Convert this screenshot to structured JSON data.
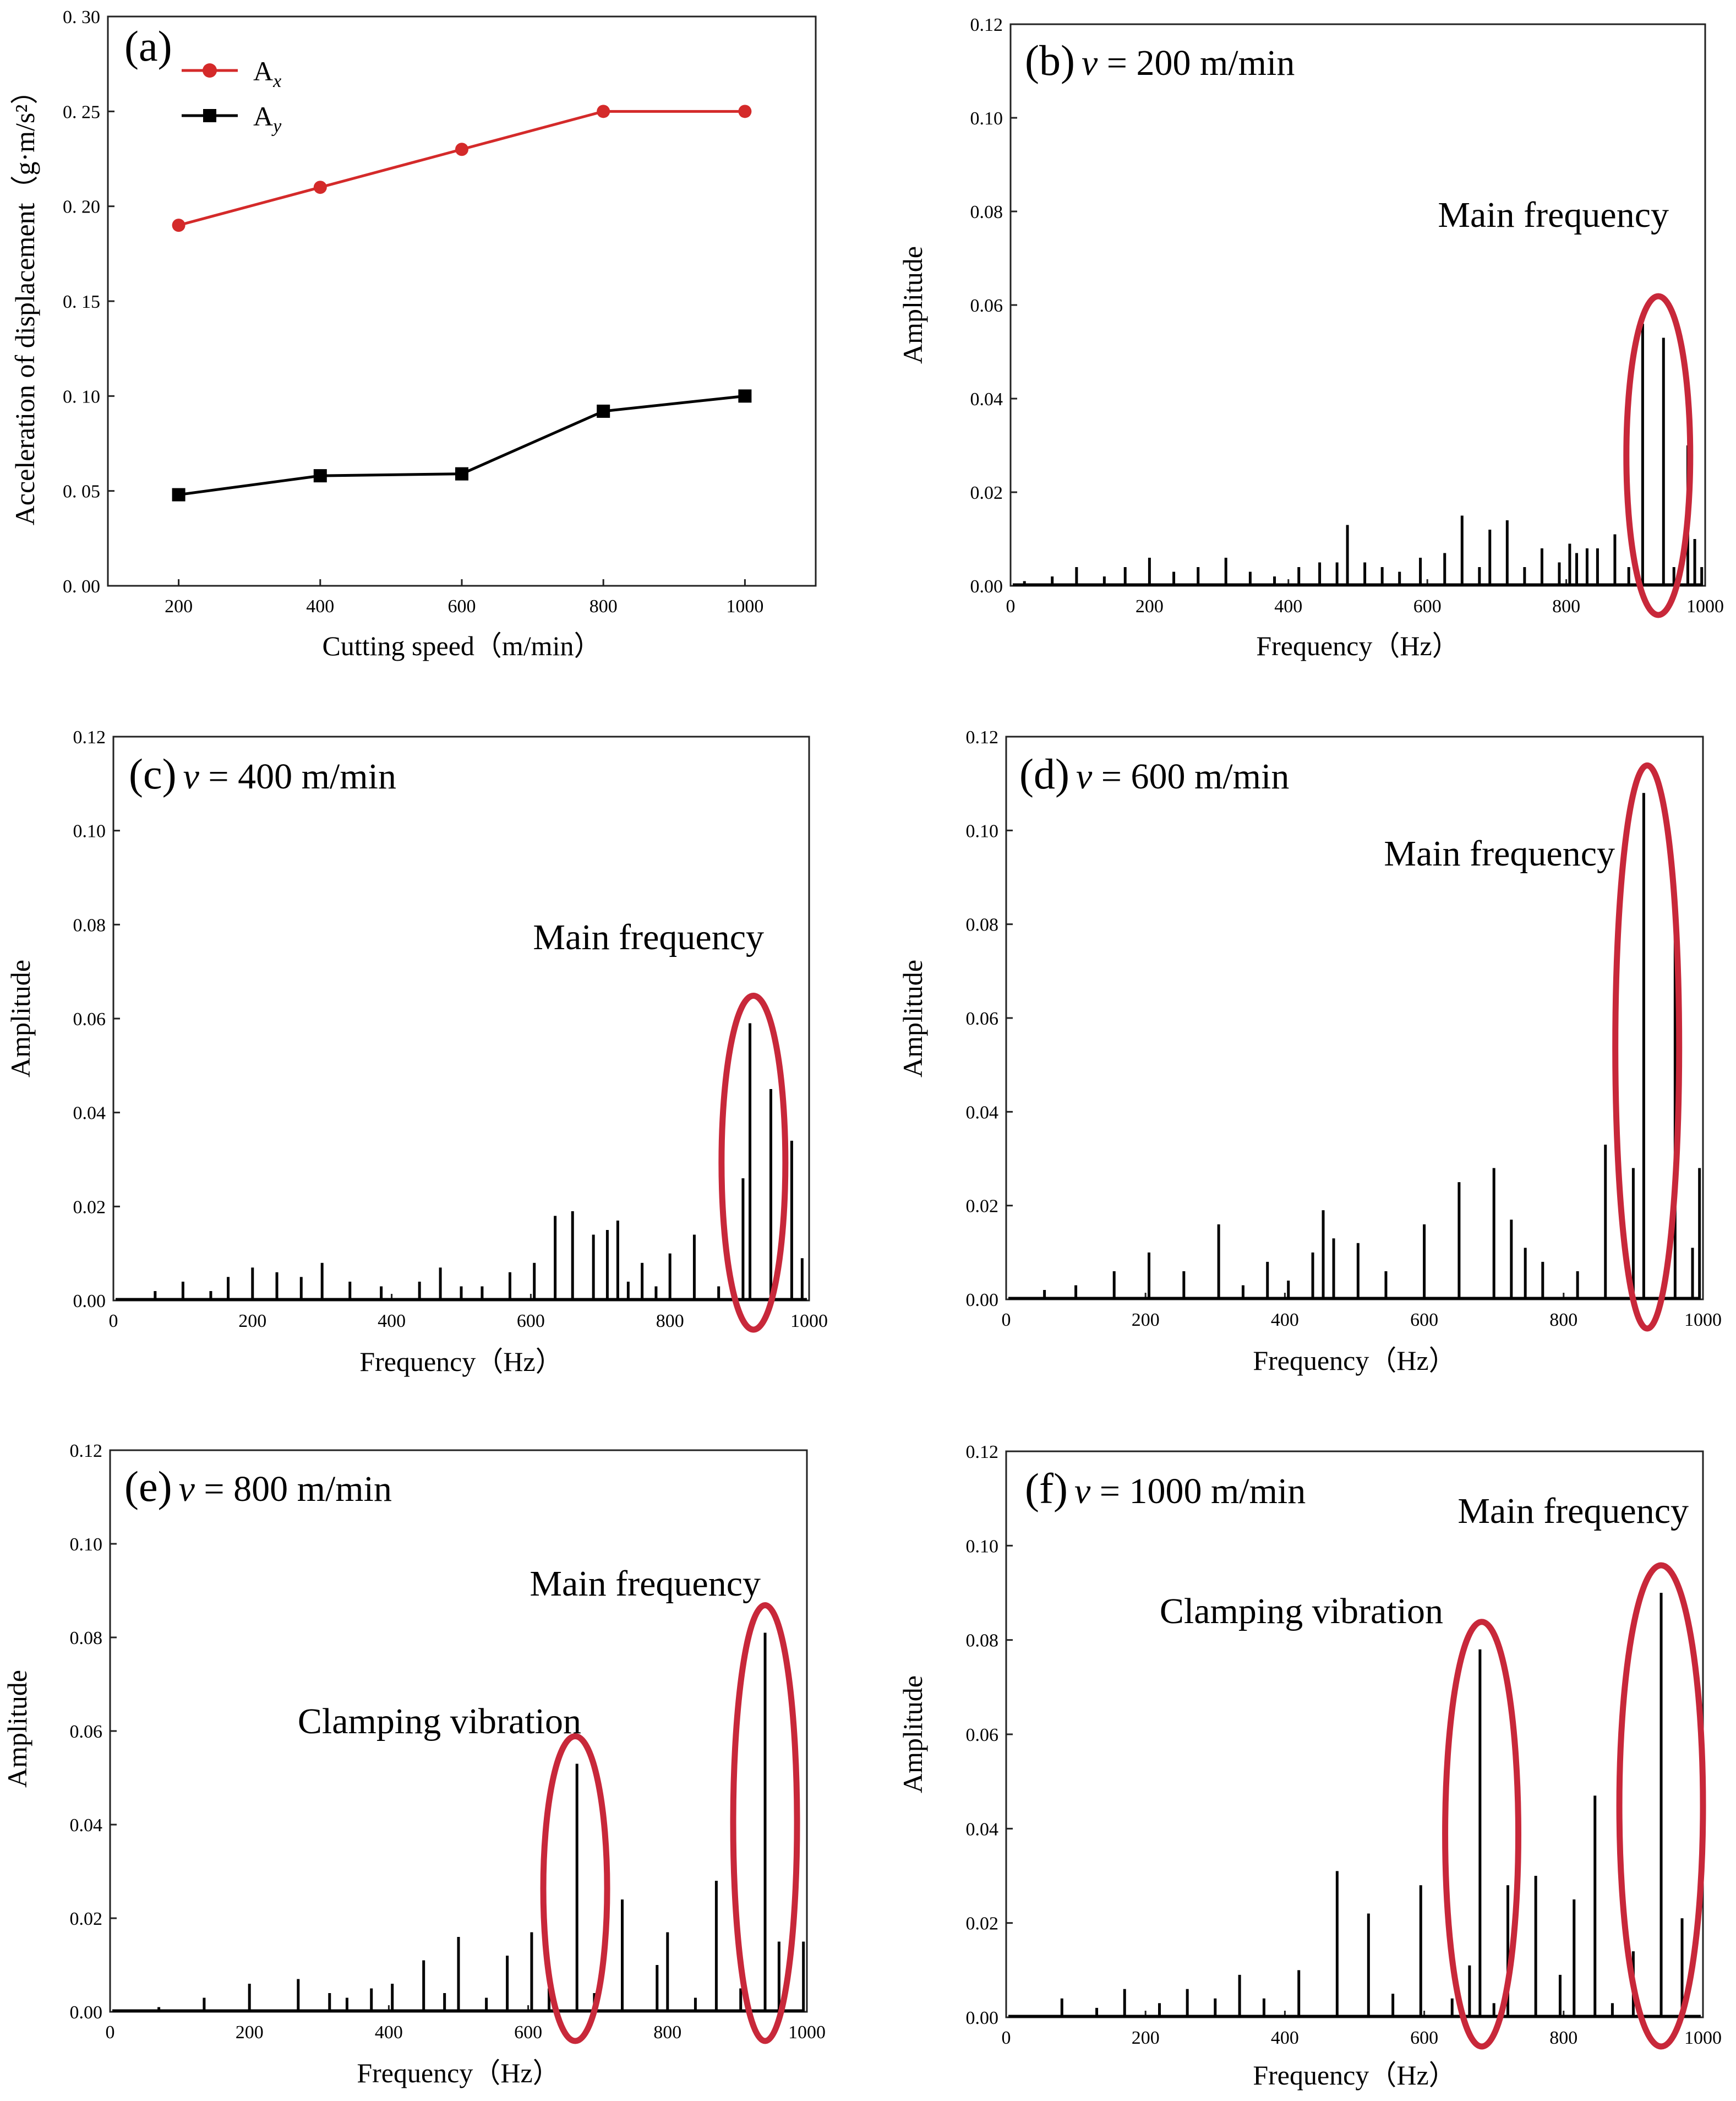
{
  "colors": {
    "series_x": "#d42a2a",
    "series_y": "#000000",
    "highlight": "#c8283a",
    "spike": "#000000"
  },
  "chart_data": [
    {
      "id": "a",
      "type": "line",
      "panel_label": "(a)",
      "xlabel": "Cutting speed（m/min）",
      "ylabel": "Acceleration of displacement（g·m/s²）",
      "x": [
        200,
        400,
        600,
        800,
        1000
      ],
      "xlim": [
        100,
        1100
      ],
      "ylim": [
        0,
        0.3
      ],
      "xticks": [
        "200",
        "400",
        "600",
        "800",
        "1000"
      ],
      "yticks": [
        "0. 00",
        "0. 05",
        "0. 10",
        "0. 15",
        "0. 20",
        "0. 25",
        "0. 30"
      ],
      "legend_position": "top-left",
      "series": [
        {
          "name": "A",
          "name_sub": "x",
          "color": "#d42a2a",
          "marker": "circle",
          "values": [
            0.19,
            0.21,
            0.23,
            0.25,
            0.25
          ]
        },
        {
          "name": "A",
          "name_sub": "y",
          "color": "#000000",
          "marker": "square",
          "values": [
            0.048,
            0.058,
            0.059,
            0.092,
            0.1
          ]
        }
      ]
    },
    {
      "id": "b",
      "type": "bar",
      "panel_label": "(b)",
      "speed_symbol": "v",
      "speed_text": " = 200 m/min",
      "xlabel": "Frequency（Hz）",
      "ylabel": "Amplitude",
      "xlim": [
        0,
        1000
      ],
      "ylim": [
        0,
        0.12
      ],
      "xticks": [
        "0",
        "200",
        "400",
        "600",
        "800",
        "1000"
      ],
      "yticks": [
        "0.00",
        "0.02",
        "0.04",
        "0.06",
        "0.08",
        "0.10",
        "0.12"
      ],
      "annotations": [
        {
          "text": "Main frequency",
          "freq_range": [
            905,
            960
          ]
        }
      ],
      "x": [
        20,
        60,
        95,
        135,
        165,
        200,
        235,
        270,
        310,
        345,
        380,
        415,
        445,
        470,
        485,
        510,
        535,
        560,
        590,
        625,
        650,
        675,
        690,
        715,
        740,
        765,
        790,
        805,
        815,
        830,
        845,
        870,
        890,
        910,
        940,
        955,
        975,
        985,
        995
      ],
      "values": [
        0.001,
        0.002,
        0.004,
        0.002,
        0.004,
        0.006,
        0.003,
        0.004,
        0.006,
        0.003,
        0.002,
        0.004,
        0.005,
        0.005,
        0.013,
        0.005,
        0.004,
        0.003,
        0.006,
        0.007,
        0.015,
        0.004,
        0.012,
        0.014,
        0.004,
        0.008,
        0.005,
        0.009,
        0.007,
        0.008,
        0.008,
        0.011,
        0.004,
        0.056,
        0.053,
        0.004,
        0.03,
        0.01,
        0.004
      ]
    },
    {
      "id": "c",
      "type": "bar",
      "panel_label": "(c)",
      "speed_symbol": "v",
      "speed_text": " = 400 m/min",
      "xlabel": "Frequency（Hz）",
      "ylabel": "Amplitude",
      "xlim": [
        0,
        1000
      ],
      "ylim": [
        0,
        0.12
      ],
      "xticks": [
        "0",
        "200",
        "400",
        "600",
        "800",
        "1000"
      ],
      "yticks": [
        "0.00",
        "0.02",
        "0.04",
        "0.06",
        "0.08",
        "0.10",
        "0.12"
      ],
      "annotations": [
        {
          "text": "Main frequency",
          "freq_range": [
            880,
            960
          ]
        }
      ],
      "x": [
        60,
        100,
        140,
        165,
        200,
        235,
        270,
        300,
        340,
        385,
        440,
        470,
        500,
        530,
        570,
        605,
        635,
        660,
        690,
        710,
        725,
        740,
        760,
        780,
        800,
        835,
        870,
        905,
        915,
        945,
        975,
        990
      ],
      "values": [
        0.002,
        0.004,
        0.002,
        0.005,
        0.007,
        0.006,
        0.005,
        0.008,
        0.004,
        0.003,
        0.004,
        0.007,
        0.003,
        0.003,
        0.006,
        0.008,
        0.018,
        0.019,
        0.014,
        0.015,
        0.017,
        0.004,
        0.008,
        0.003,
        0.01,
        0.014,
        0.003,
        0.026,
        0.059,
        0.045,
        0.034,
        0.009
      ]
    },
    {
      "id": "d",
      "type": "bar",
      "panel_label": "(d)",
      "speed_symbol": "v",
      "speed_text": " = 600 m/min",
      "xlabel": "Frequency（Hz）",
      "ylabel": "Amplitude",
      "xlim": [
        0,
        1000
      ],
      "ylim": [
        0,
        0.12
      ],
      "xticks": [
        "0",
        "200",
        "400",
        "600",
        "800",
        "1000"
      ],
      "yticks": [
        "0.00",
        "0.02",
        "0.04",
        "0.06",
        "0.08",
        "0.10",
        "0.12"
      ],
      "annotations": [
        {
          "text": "Main frequency",
          "freq_range": [
            880,
            960
          ]
        }
      ],
      "x": [
        55,
        100,
        155,
        205,
        255,
        305,
        340,
        375,
        405,
        440,
        455,
        470,
        505,
        545,
        600,
        650,
        700,
        725,
        745,
        770,
        820,
        860,
        900,
        915,
        960,
        985,
        995
      ],
      "values": [
        0.002,
        0.003,
        0.006,
        0.01,
        0.006,
        0.016,
        0.003,
        0.008,
        0.004,
        0.01,
        0.019,
        0.013,
        0.012,
        0.006,
        0.016,
        0.025,
        0.028,
        0.017,
        0.011,
        0.008,
        0.006,
        0.033,
        0.028,
        0.108,
        0.081,
        0.011,
        0.028
      ]
    },
    {
      "id": "e",
      "type": "bar",
      "panel_label": "(e)",
      "speed_symbol": "v",
      "speed_text": " = 800 m/min",
      "xlabel": "Frequency（Hz）",
      "ylabel": "Amplitude",
      "xlim": [
        0,
        1000
      ],
      "ylim": [
        0,
        0.12
      ],
      "xticks": [
        "0",
        "200",
        "400",
        "600",
        "800",
        "1000"
      ],
      "yticks": [
        "0.00",
        "0.02",
        "0.04",
        "0.06",
        "0.08",
        "0.10",
        "0.12"
      ],
      "annotations": [
        {
          "text": "Clamping vibration",
          "freq_range": [
            625,
            710
          ]
        },
        {
          "text": "Main frequency",
          "freq_range": [
            895,
            985
          ]
        }
      ],
      "x": [
        70,
        135,
        200,
        270,
        315,
        340,
        375,
        405,
        450,
        480,
        500,
        540,
        570,
        605,
        630,
        670,
        695,
        735,
        785,
        800,
        840,
        870,
        905,
        940,
        960,
        995
      ],
      "values": [
        0.001,
        0.003,
        0.006,
        0.007,
        0.004,
        0.003,
        0.005,
        0.006,
        0.011,
        0.004,
        0.016,
        0.003,
        0.012,
        0.017,
        0.005,
        0.053,
        0.004,
        0.024,
        0.01,
        0.017,
        0.003,
        0.028,
        0.005,
        0.081,
        0.015,
        0.015
      ]
    },
    {
      "id": "f",
      "type": "bar",
      "panel_label": "(f)",
      "speed_symbol": "v",
      "speed_text": " = 1000 m/min",
      "xlabel": "Frequency（Hz）",
      "ylabel": "Amplitude",
      "xlim": [
        0,
        1000
      ],
      "ylim": [
        0,
        0.12
      ],
      "xticks": [
        "0",
        "200",
        "400",
        "600",
        "800",
        "1000"
      ],
      "yticks": [
        "0.00",
        "0.02",
        "0.04",
        "0.06",
        "0.08",
        "0.10",
        "0.12"
      ],
      "annotations": [
        {
          "text": "Clamping vibration",
          "freq_range": [
            630,
            735
          ]
        },
        {
          "text": "Main frequency",
          "freq_range": [
            880,
            1000
          ]
        }
      ],
      "x": [
        80,
        130,
        170,
        220,
        260,
        300,
        335,
        370,
        420,
        475,
        520,
        555,
        595,
        640,
        665,
        680,
        700,
        720,
        760,
        795,
        815,
        845,
        870,
        900,
        940,
        970
      ],
      "values": [
        0.004,
        0.002,
        0.006,
        0.003,
        0.006,
        0.004,
        0.009,
        0.004,
        0.01,
        0.031,
        0.022,
        0.005,
        0.028,
        0.004,
        0.011,
        0.078,
        0.003,
        0.028,
        0.03,
        0.009,
        0.025,
        0.047,
        0.003,
        0.014,
        0.09,
        0.021
      ]
    }
  ]
}
